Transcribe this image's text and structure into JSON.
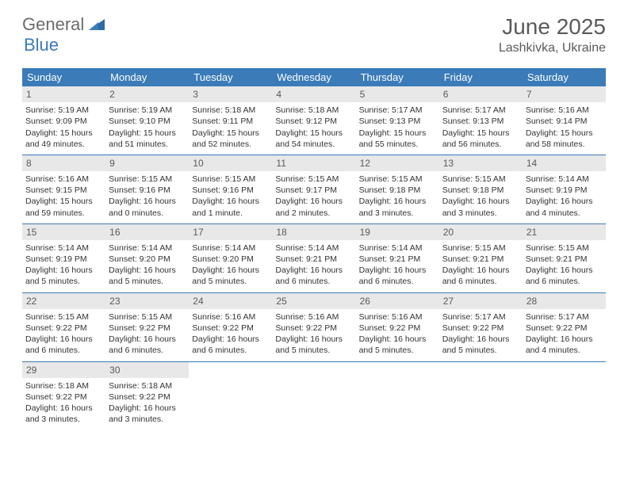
{
  "brand": {
    "general": "General",
    "blue": "Blue"
  },
  "title": "June 2025",
  "location": "Lashkivka, Ukraine",
  "colors": {
    "header_bg": "#3a7bb8",
    "daynum_bg": "#e8e8e8",
    "text": "#333333",
    "muted": "#5a5a5a"
  },
  "weekdays": [
    "Sunday",
    "Monday",
    "Tuesday",
    "Wednesday",
    "Thursday",
    "Friday",
    "Saturday"
  ],
  "weeks": [
    [
      {
        "n": "1",
        "sr": "5:19 AM",
        "ss": "9:09 PM",
        "dl": "15 hours and 49 minutes."
      },
      {
        "n": "2",
        "sr": "5:19 AM",
        "ss": "9:10 PM",
        "dl": "15 hours and 51 minutes."
      },
      {
        "n": "3",
        "sr": "5:18 AM",
        "ss": "9:11 PM",
        "dl": "15 hours and 52 minutes."
      },
      {
        "n": "4",
        "sr": "5:18 AM",
        "ss": "9:12 PM",
        "dl": "15 hours and 54 minutes."
      },
      {
        "n": "5",
        "sr": "5:17 AM",
        "ss": "9:13 PM",
        "dl": "15 hours and 55 minutes."
      },
      {
        "n": "6",
        "sr": "5:17 AM",
        "ss": "9:13 PM",
        "dl": "15 hours and 56 minutes."
      },
      {
        "n": "7",
        "sr": "5:16 AM",
        "ss": "9:14 PM",
        "dl": "15 hours and 58 minutes."
      }
    ],
    [
      {
        "n": "8",
        "sr": "5:16 AM",
        "ss": "9:15 PM",
        "dl": "15 hours and 59 minutes."
      },
      {
        "n": "9",
        "sr": "5:15 AM",
        "ss": "9:16 PM",
        "dl": "16 hours and 0 minutes."
      },
      {
        "n": "10",
        "sr": "5:15 AM",
        "ss": "9:16 PM",
        "dl": "16 hours and 1 minute."
      },
      {
        "n": "11",
        "sr": "5:15 AM",
        "ss": "9:17 PM",
        "dl": "16 hours and 2 minutes."
      },
      {
        "n": "12",
        "sr": "5:15 AM",
        "ss": "9:18 PM",
        "dl": "16 hours and 3 minutes."
      },
      {
        "n": "13",
        "sr": "5:15 AM",
        "ss": "9:18 PM",
        "dl": "16 hours and 3 minutes."
      },
      {
        "n": "14",
        "sr": "5:14 AM",
        "ss": "9:19 PM",
        "dl": "16 hours and 4 minutes."
      }
    ],
    [
      {
        "n": "15",
        "sr": "5:14 AM",
        "ss": "9:19 PM",
        "dl": "16 hours and 5 minutes."
      },
      {
        "n": "16",
        "sr": "5:14 AM",
        "ss": "9:20 PM",
        "dl": "16 hours and 5 minutes."
      },
      {
        "n": "17",
        "sr": "5:14 AM",
        "ss": "9:20 PM",
        "dl": "16 hours and 5 minutes."
      },
      {
        "n": "18",
        "sr": "5:14 AM",
        "ss": "9:21 PM",
        "dl": "16 hours and 6 minutes."
      },
      {
        "n": "19",
        "sr": "5:14 AM",
        "ss": "9:21 PM",
        "dl": "16 hours and 6 minutes."
      },
      {
        "n": "20",
        "sr": "5:15 AM",
        "ss": "9:21 PM",
        "dl": "16 hours and 6 minutes."
      },
      {
        "n": "21",
        "sr": "5:15 AM",
        "ss": "9:21 PM",
        "dl": "16 hours and 6 minutes."
      }
    ],
    [
      {
        "n": "22",
        "sr": "5:15 AM",
        "ss": "9:22 PM",
        "dl": "16 hours and 6 minutes."
      },
      {
        "n": "23",
        "sr": "5:15 AM",
        "ss": "9:22 PM",
        "dl": "16 hours and 6 minutes."
      },
      {
        "n": "24",
        "sr": "5:16 AM",
        "ss": "9:22 PM",
        "dl": "16 hours and 6 minutes."
      },
      {
        "n": "25",
        "sr": "5:16 AM",
        "ss": "9:22 PM",
        "dl": "16 hours and 5 minutes."
      },
      {
        "n": "26",
        "sr": "5:16 AM",
        "ss": "9:22 PM",
        "dl": "16 hours and 5 minutes."
      },
      {
        "n": "27",
        "sr": "5:17 AM",
        "ss": "9:22 PM",
        "dl": "16 hours and 5 minutes."
      },
      {
        "n": "28",
        "sr": "5:17 AM",
        "ss": "9:22 PM",
        "dl": "16 hours and 4 minutes."
      }
    ],
    [
      {
        "n": "29",
        "sr": "5:18 AM",
        "ss": "9:22 PM",
        "dl": "16 hours and 3 minutes."
      },
      {
        "n": "30",
        "sr": "5:18 AM",
        "ss": "9:22 PM",
        "dl": "16 hours and 3 minutes."
      },
      null,
      null,
      null,
      null,
      null
    ]
  ],
  "labels": {
    "sunrise": "Sunrise: ",
    "sunset": "Sunset: ",
    "daylight": "Daylight: "
  }
}
